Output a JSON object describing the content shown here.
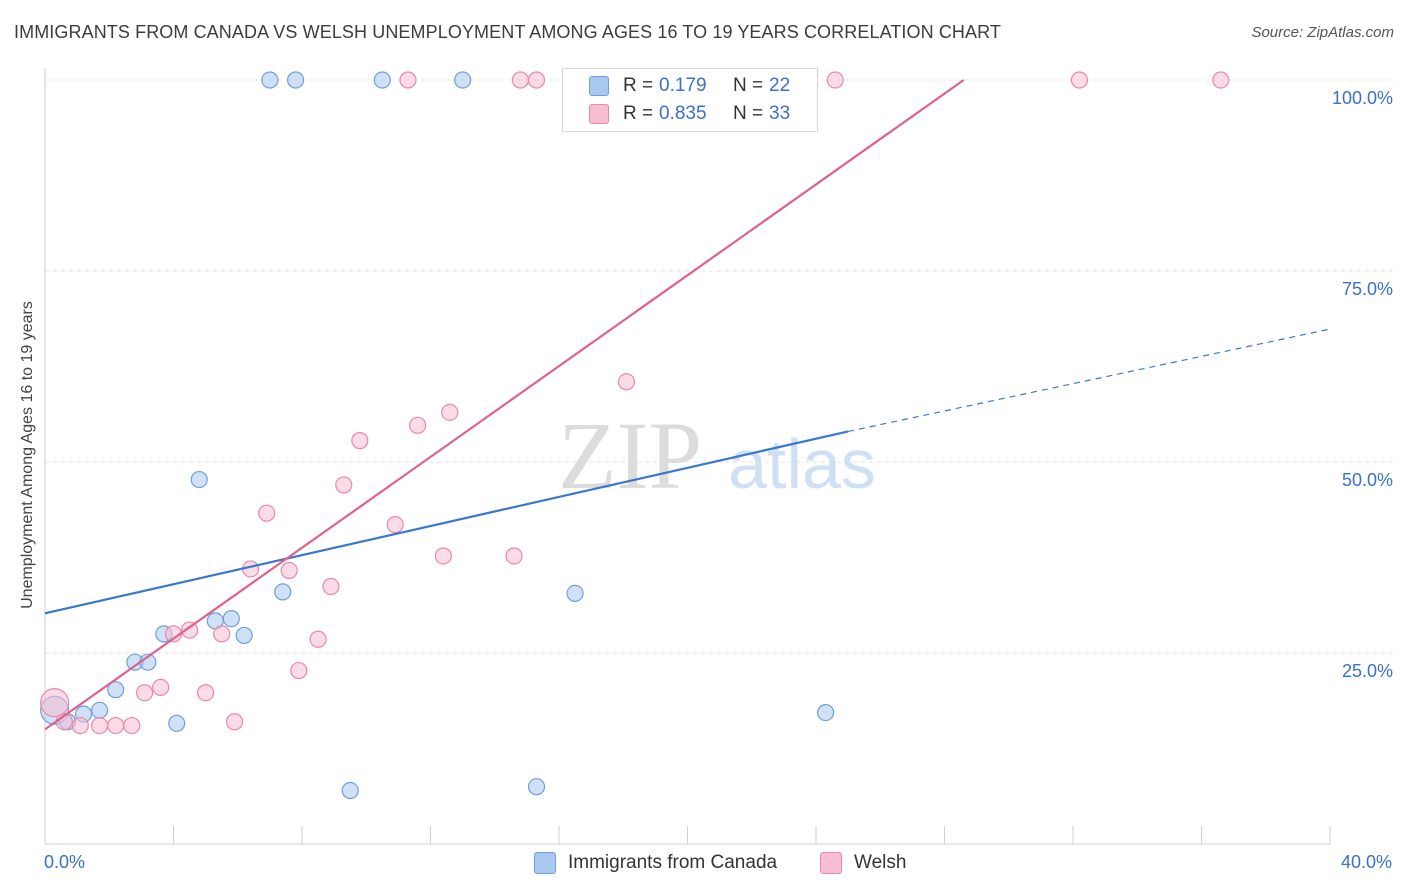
{
  "title": "IMMIGRANTS FROM CANADA VS WELSH UNEMPLOYMENT AMONG AGES 16 TO 19 YEARS CORRELATION CHART",
  "source": "Source: ZipAtlas.com",
  "watermark": {
    "zip": "ZIP",
    "atlas": "atlas"
  },
  "legend": {
    "r_label": "R =",
    "n_label": "N =",
    "rows": [
      {
        "r": "0.179",
        "n": "22",
        "color": "#a9c8f0",
        "border": "#6f9fdc"
      },
      {
        "r": "0.835",
        "n": "33",
        "color": "#f8bdd0",
        "border": "#e889a8"
      }
    ]
  },
  "bottom_legend": [
    {
      "label": "Immigrants from Canada",
      "color": "#a9c8f0",
      "border": "#6f9fdc"
    },
    {
      "label": "Welsh",
      "color": "#f8bdd0",
      "border": "#e889a8"
    }
  ],
  "chart_data": {
    "type": "scatter",
    "title": "IMMIGRANTS FROM CANADA VS WELSH UNEMPLOYMENT AMONG AGES 16 TO 19 YEARS CORRELATION CHART",
    "xlabel": "",
    "ylabel": "Unemployment Among Ages 16 to 19 years",
    "xlim": [
      0,
      40
    ],
    "ylim": [
      0,
      105
    ],
    "x_tick_labels": [
      "0.0%",
      "40.0%"
    ],
    "y_ticks": [
      25,
      50,
      75,
      100
    ],
    "y_tick_labels": [
      "25.0%",
      "50.0%",
      "75.0%",
      "100.0%"
    ],
    "grid": true,
    "series": [
      {
        "name": "Immigrants from Canada",
        "color": "#a9c8f0",
        "stroke": "#6f9fdc",
        "line_color": "#3a78d0",
        "trend": {
          "x0": 0,
          "y0": 30.2,
          "x1": 25.0,
          "y1": 54.0,
          "extend_to_x": 40,
          "extend_y": 67.4
        },
        "points": [
          {
            "x": 7.0,
            "y": 100
          },
          {
            "x": 7.8,
            "y": 100
          },
          {
            "x": 10.5,
            "y": 100
          },
          {
            "x": 13.0,
            "y": 100
          },
          {
            "x": 0.3,
            "y": 17.5
          },
          {
            "x": 0.7,
            "y": 16.0
          },
          {
            "x": 1.2,
            "y": 17.0
          },
          {
            "x": 1.7,
            "y": 17.5
          },
          {
            "x": 2.2,
            "y": 20.2
          },
          {
            "x": 2.8,
            "y": 23.8
          },
          {
            "x": 3.2,
            "y": 23.8
          },
          {
            "x": 3.7,
            "y": 27.5
          },
          {
            "x": 4.1,
            "y": 15.8
          },
          {
            "x": 4.8,
            "y": 47.7
          },
          {
            "x": 5.3,
            "y": 29.2
          },
          {
            "x": 5.8,
            "y": 29.5
          },
          {
            "x": 6.2,
            "y": 27.3
          },
          {
            "x": 7.4,
            "y": 33.0
          },
          {
            "x": 9.5,
            "y": 7.0
          },
          {
            "x": 15.3,
            "y": 7.5
          },
          {
            "x": 16.5,
            "y": 32.8
          },
          {
            "x": 24.3,
            "y": 17.2
          }
        ]
      },
      {
        "name": "Welsh",
        "color": "#f8bdd0",
        "stroke": "#e889a8",
        "line_color": "#e0608d",
        "trend": {
          "x0": 0,
          "y0": 15.0,
          "x1": 28.6,
          "y1": 100
        },
        "points": [
          {
            "x": 11.3,
            "y": 100
          },
          {
            "x": 14.8,
            "y": 100
          },
          {
            "x": 15.3,
            "y": 100
          },
          {
            "x": 24.6,
            "y": 100
          },
          {
            "x": 32.2,
            "y": 100
          },
          {
            "x": 36.6,
            "y": 100
          },
          {
            "x": 0.3,
            "y": 18.5
          },
          {
            "x": 0.6,
            "y": 16.0
          },
          {
            "x": 1.1,
            "y": 15.5
          },
          {
            "x": 1.7,
            "y": 15.5
          },
          {
            "x": 2.2,
            "y": 15.5
          },
          {
            "x": 2.7,
            "y": 15.5
          },
          {
            "x": 3.1,
            "y": 19.8
          },
          {
            "x": 3.6,
            "y": 20.5
          },
          {
            "x": 4.0,
            "y": 27.5
          },
          {
            "x": 4.5,
            "y": 28.0
          },
          {
            "x": 5.0,
            "y": 19.8
          },
          {
            "x": 5.5,
            "y": 27.5
          },
          {
            "x": 5.9,
            "y": 16.0
          },
          {
            "x": 6.4,
            "y": 36.0
          },
          {
            "x": 6.9,
            "y": 43.3
          },
          {
            "x": 7.6,
            "y": 35.8
          },
          {
            "x": 7.9,
            "y": 22.7
          },
          {
            "x": 8.5,
            "y": 26.8
          },
          {
            "x": 8.9,
            "y": 33.7
          },
          {
            "x": 9.3,
            "y": 47.0
          },
          {
            "x": 9.8,
            "y": 52.8
          },
          {
            "x": 10.9,
            "y": 41.8
          },
          {
            "x": 11.6,
            "y": 54.8
          },
          {
            "x": 12.4,
            "y": 37.7
          },
          {
            "x": 12.6,
            "y": 56.5
          },
          {
            "x": 14.6,
            "y": 37.7
          },
          {
            "x": 18.1,
            "y": 60.5
          }
        ]
      }
    ]
  }
}
